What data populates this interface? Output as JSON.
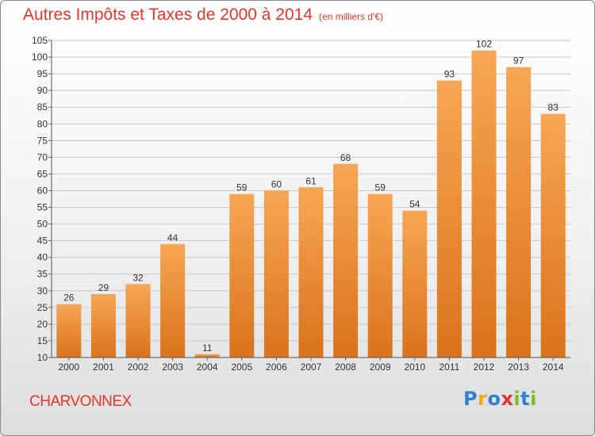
{
  "title": "Autres Impôts et Taxes de 2000 à 2014",
  "subtitle": "(en milliers d'€)",
  "commune": "CHARVONNEX",
  "logo": {
    "letters": [
      {
        "char": "P",
        "color": "#2f7fd6"
      },
      {
        "char": "r",
        "color": "#f2a81c"
      },
      {
        "char": "o",
        "color": "#2f7fd6"
      },
      {
        "char": "x",
        "color": "#e8352a"
      },
      {
        "char": "i",
        "color": "#7cbd2a"
      },
      {
        "char": "t",
        "color": "#2f7fd6"
      },
      {
        "char": "i",
        "color": "#7cbd2a"
      }
    ]
  },
  "colors": {
    "title": "#e8352a",
    "bar_top": "#f7a655",
    "bar_bottom": "#d9731c",
    "grid": "#c8c8c8",
    "axis_text": "#333333"
  },
  "chart_data": {
    "type": "bar",
    "categories": [
      "2000",
      "2001",
      "2002",
      "2003",
      "2004",
      "2005",
      "2006",
      "2007",
      "2008",
      "2009",
      "2010",
      "2011",
      "2012",
      "2013",
      "2014"
    ],
    "values": [
      26,
      29,
      32,
      44,
      11,
      59,
      60,
      61,
      68,
      59,
      54,
      93,
      102,
      97,
      83
    ],
    "ylim": [
      10,
      105
    ],
    "yticks": [
      10,
      15,
      20,
      25,
      30,
      35,
      40,
      45,
      50,
      55,
      60,
      65,
      70,
      75,
      80,
      85,
      90,
      95,
      100,
      105
    ],
    "grid": true,
    "data_labels": true
  }
}
